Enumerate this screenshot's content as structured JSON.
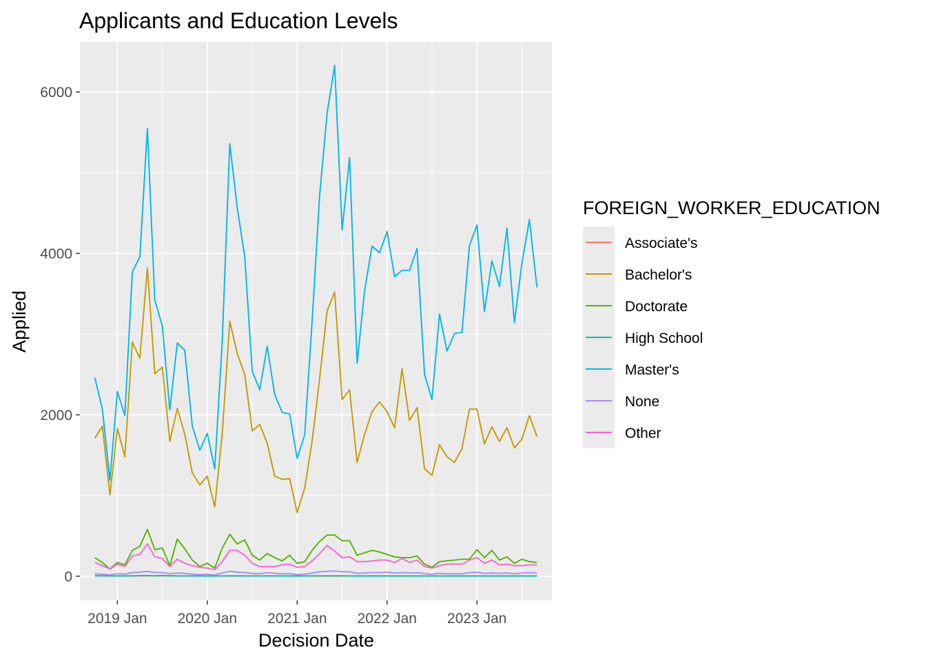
{
  "chart_data": {
    "type": "line",
    "title": "Applicants and Education Levels",
    "xlabel": "Decision Date",
    "ylabel": "Applied",
    "x_start": "2018-10",
    "x_ticks": [
      {
        "label": "2019 Jan",
        "date": "2019-01"
      },
      {
        "label": "2020 Jan",
        "date": "2020-01"
      },
      {
        "label": "2021 Jan",
        "date": "2021-01"
      },
      {
        "label": "2022 Jan",
        "date": "2022-01"
      },
      {
        "label": "2023 Jan",
        "date": "2023-01"
      }
    ],
    "xlim": [
      "2018-08",
      "2023-11"
    ],
    "y_ticks": [
      0,
      2000,
      4000,
      6000
    ],
    "ylim": [
      -300,
      6620
    ],
    "grid": true,
    "legend": {
      "title": "FOREIGN_WORKER_EDUCATION",
      "position": "right"
    },
    "series": [
      {
        "name": "Associate's",
        "color": "#F8766D",
        "values": [
          5,
          5,
          4,
          3,
          3,
          4,
          4,
          5,
          5,
          6,
          5,
          4,
          4,
          4,
          3,
          3,
          2,
          3,
          3,
          2,
          2,
          3,
          4,
          4,
          4,
          3,
          3,
          3,
          3,
          3,
          3,
          3,
          3,
          3,
          3,
          4,
          4,
          5,
          5,
          4,
          4,
          3,
          3,
          3,
          3,
          3,
          3,
          3,
          3,
          3,
          3,
          3,
          3,
          3,
          3,
          3,
          3,
          3,
          3,
          3
        ]
      },
      {
        "name": "Bachelor's",
        "color": "#C49A00",
        "values": [
          1710,
          1860,
          1010,
          1830,
          1480,
          2900,
          2700,
          3820,
          2510,
          2590,
          1670,
          2080,
          1760,
          1280,
          1130,
          1240,
          860,
          1770,
          3160,
          2760,
          2500,
          1800,
          1880,
          1650,
          1240,
          1200,
          1210,
          790,
          1090,
          1680,
          2450,
          3290,
          3520,
          2190,
          2310,
          1410,
          1760,
          2040,
          2160,
          2040,
          1840,
          2570,
          1930,
          2090,
          1330,
          1250,
          1630,
          1480,
          1410,
          1580,
          2070,
          2070,
          1640,
          1850,
          1670,
          1840,
          1590,
          1700,
          1990,
          1730
        ]
      },
      {
        "name": "Doctorate",
        "color": "#53B400",
        "values": [
          230,
          170,
          90,
          170,
          140,
          320,
          370,
          580,
          330,
          350,
          130,
          460,
          340,
          200,
          120,
          160,
          100,
          350,
          520,
          400,
          450,
          260,
          200,
          280,
          230,
          190,
          260,
          160,
          180,
          320,
          430,
          510,
          510,
          440,
          440,
          260,
          290,
          320,
          300,
          270,
          240,
          230,
          230,
          250,
          150,
          110,
          180,
          190,
          200,
          210,
          210,
          330,
          230,
          320,
          200,
          240,
          160,
          210,
          180,
          170
        ]
      },
      {
        "name": "High School",
        "color": "#00C094",
        "values": [
          5,
          5,
          4,
          4,
          4,
          5,
          6,
          6,
          5,
          6,
          5,
          4,
          4,
          4,
          3,
          3,
          3,
          4,
          5,
          5,
          4,
          4,
          3,
          5,
          4,
          3,
          3,
          3,
          3,
          4,
          5,
          5,
          5,
          5,
          4,
          3,
          3,
          3,
          3,
          3,
          2,
          2,
          2,
          3,
          2,
          2,
          2,
          2,
          2,
          2,
          2,
          2,
          2,
          2,
          2,
          2,
          2,
          2,
          2,
          3
        ]
      },
      {
        "name": "Master's",
        "color": "#00B6EB",
        "values": [
          2460,
          2070,
          1190,
          2290,
          1990,
          3770,
          3960,
          5550,
          3420,
          3100,
          2060,
          2890,
          2800,
          1860,
          1560,
          1770,
          1330,
          2920,
          5360,
          4570,
          3960,
          2540,
          2310,
          2850,
          2250,
          2030,
          2010,
          1460,
          1750,
          3170,
          4720,
          5740,
          6330,
          4290,
          5190,
          2640,
          3540,
          4090,
          4010,
          4270,
          3710,
          3790,
          3790,
          4060,
          2500,
          2190,
          3250,
          2790,
          3010,
          3020,
          4100,
          4350,
          3280,
          3910,
          3590,
          4310,
          3140,
          3880,
          4420,
          3580
        ]
      },
      {
        "name": "None",
        "color": "#A58AFF",
        "values": [
          30,
          25,
          15,
          30,
          25,
          45,
          50,
          60,
          45,
          45,
          30,
          40,
          35,
          25,
          20,
          25,
          15,
          40,
          60,
          50,
          45,
          35,
          30,
          45,
          35,
          30,
          30,
          20,
          25,
          40,
          55,
          60,
          65,
          55,
          55,
          35,
          40,
          45,
          45,
          50,
          40,
          45,
          40,
          45,
          30,
          25,
          35,
          30,
          30,
          30,
          45,
          50,
          35,
          40,
          35,
          40,
          30,
          40,
          45,
          40
        ]
      },
      {
        "name": "Other",
        "color": "#FB61D7",
        "values": [
          170,
          130,
          90,
          150,
          120,
          250,
          270,
          400,
          240,
          220,
          120,
          210,
          160,
          130,
          110,
          100,
          80,
          180,
          320,
          320,
          260,
          160,
          120,
          120,
          120,
          140,
          150,
          110,
          120,
          190,
          280,
          380,
          310,
          230,
          240,
          180,
          180,
          190,
          200,
          200,
          170,
          220,
          170,
          200,
          120,
          100,
          130,
          150,
          150,
          150,
          200,
          230,
          160,
          200,
          140,
          150,
          130,
          130,
          140,
          140
        ]
      }
    ]
  }
}
